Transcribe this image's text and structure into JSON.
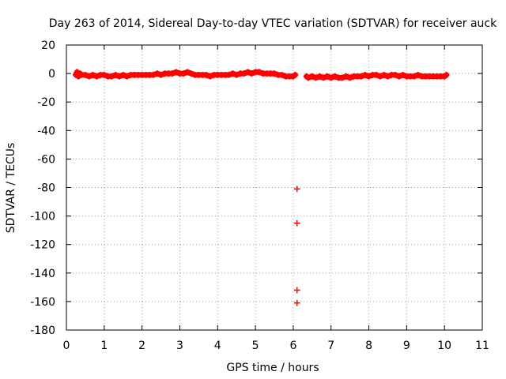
{
  "chart_data": {
    "type": "scatter",
    "title": "Day 263 of 2014, Sidereal Day-to-day VTEC variation (SDTVAR) for receiver auck",
    "xlabel": "GPS time / hours",
    "ylabel": "SDTVAR / TECUs",
    "xlim": [
      0,
      11
    ],
    "ylim": [
      -180,
      20
    ],
    "xticks": [
      "0",
      "1",
      "2",
      "3",
      "4",
      "5",
      "6",
      "7",
      "8",
      "9",
      "10",
      "11"
    ],
    "yticks": [
      "20",
      "0",
      "-20",
      "-40",
      "-60",
      "-80",
      "-100",
      "-120",
      "-140",
      "-160",
      "-180"
    ],
    "grid": true,
    "marker": "plus",
    "marker_color": "#ff0000",
    "series": [
      {
        "name": "SDTVAR",
        "x": [
          0.25,
          0.28,
          0.32,
          0.36,
          0.4,
          0.5,
          0.6,
          0.7,
          0.8,
          0.9,
          1.0,
          1.1,
          1.2,
          1.3,
          1.4,
          1.5,
          1.6,
          1.7,
          1.8,
          1.9,
          2.0,
          2.1,
          2.2,
          2.3,
          2.4,
          2.5,
          2.6,
          2.7,
          2.8,
          2.9,
          3.0,
          3.1,
          3.2,
          3.3,
          3.4,
          3.5,
          3.6,
          3.7,
          3.8,
          3.9,
          4.0,
          4.1,
          4.2,
          4.3,
          4.4,
          4.5,
          4.6,
          4.7,
          4.8,
          4.9,
          5.0,
          5.1,
          5.2,
          5.3,
          5.4,
          5.5,
          5.6,
          5.7,
          5.8,
          5.9,
          6.0,
          6.05,
          6.1,
          6.1,
          6.1,
          6.1,
          6.35,
          6.4,
          6.5,
          6.6,
          6.7,
          6.8,
          6.9,
          7.0,
          7.1,
          7.2,
          7.3,
          7.4,
          7.5,
          7.6,
          7.7,
          7.8,
          7.9,
          8.0,
          8.1,
          8.2,
          8.3,
          8.4,
          8.5,
          8.6,
          8.7,
          8.8,
          8.9,
          9.0,
          9.1,
          9.2,
          9.3,
          9.4,
          9.5,
          9.6,
          9.7,
          9.8,
          9.9,
          10.0,
          10.05
        ],
        "y": [
          -1,
          1,
          -2,
          0,
          -1,
          -1,
          -2,
          -1,
          -2,
          -1,
          -1,
          -2,
          -2,
          -1,
          -2,
          -1,
          -2,
          -1,
          -1,
          -1,
          -1,
          -1,
          -1,
          -1,
          0,
          -1,
          0,
          0,
          0,
          1,
          0,
          0,
          1,
          0,
          -1,
          -1,
          -1,
          -1,
          -2,
          -1,
          -1,
          -1,
          -1,
          -1,
          0,
          -1,
          0,
          0,
          1,
          0,
          1,
          1,
          0,
          0,
          0,
          0,
          -1,
          -1,
          -2,
          -2,
          -2,
          -1,
          -81,
          -105,
          -152,
          -161,
          -2,
          -3,
          -2,
          -3,
          -2,
          -3,
          -2,
          -3,
          -2,
          -3,
          -3,
          -2,
          -3,
          -2,
          -2,
          -2,
          -1,
          -2,
          -1,
          -1,
          -2,
          -1,
          -2,
          -1,
          -1,
          -2,
          -1,
          -2,
          -2,
          -2,
          -1,
          -2,
          -2,
          -2,
          -2,
          -2,
          -2,
          -2,
          -1
        ]
      }
    ]
  }
}
